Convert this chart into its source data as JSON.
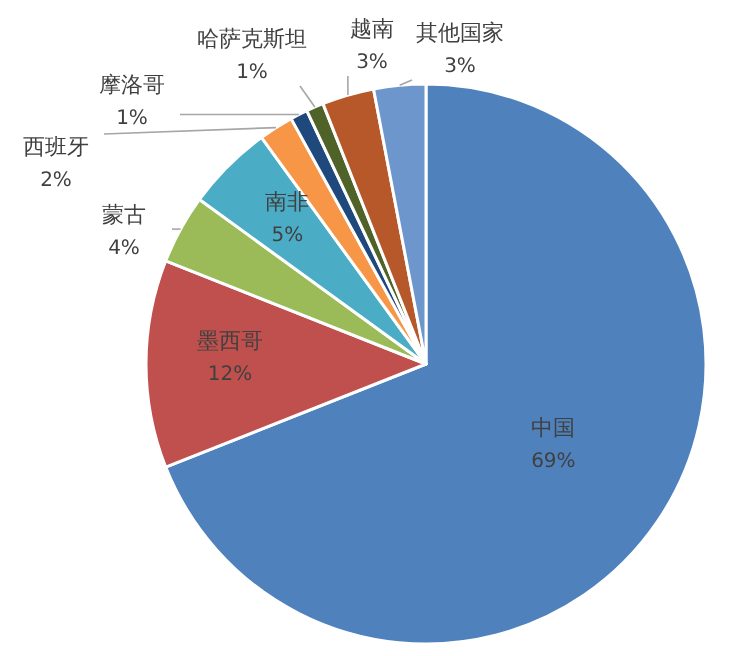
{
  "chart_data": {
    "type": "pie",
    "value_labels": [
      "69%",
      "12%",
      "4%",
      "5%",
      "2%",
      "1%",
      "1%",
      "3%",
      "3%"
    ],
    "categories": [
      "中国",
      "墨西哥",
      "蒙古",
      "南非",
      "西班牙",
      "摩洛哥",
      "哈萨克斯坦",
      "越南",
      "其他国家"
    ],
    "values": [
      69,
      12,
      4,
      5,
      2,
      1,
      1,
      3,
      3
    ],
    "colors": [
      "#4f81bd",
      "#c0504d",
      "#9bbb59",
      "#4bacc6",
      "#f79646",
      "#1f497d",
      "#4f6228",
      "#b6582a",
      "#6d97cc"
    ]
  }
}
